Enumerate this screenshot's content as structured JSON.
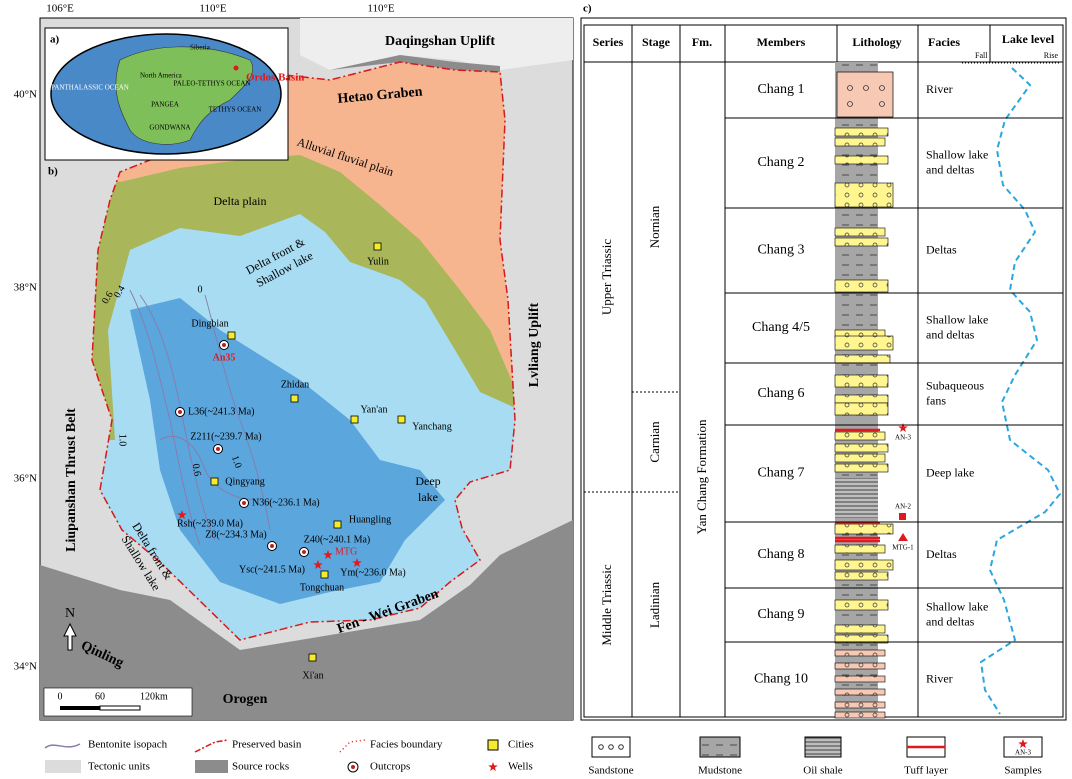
{
  "map": {
    "panel_a": "a)",
    "panel_b": "b)",
    "longitudes": [
      "106°E",
      "110°E",
      "110°E"
    ],
    "latitudes": [
      "40°N",
      "38°N",
      "36°N",
      "34°N"
    ],
    "inset": {
      "labels": [
        "Siberia",
        "North America",
        "PANGEA",
        "GONDWANA",
        "PANTHALASSIC OCEAN",
        "PALEO-TETHYS OCEAN",
        "TETHYS OCEAN"
      ],
      "basin": "Ordos Basin"
    },
    "regions": [
      "Daqingshan Uplift",
      "Hetao Graben",
      "Alluvial fluvial plain",
      "Delta plain",
      [
        "Delta front &",
        "Shallow lake"
      ],
      "Lvliang Uplift",
      "Liupanshan Thrust Belt",
      [
        "Deep",
        "lake"
      ],
      [
        "Delta front &",
        "Shallow lake"
      ],
      "Fen - Wei Graben",
      "Qinling",
      "Orogen"
    ],
    "cities": [
      "Yulin",
      "Dingbian",
      "Zhidan",
      "Yan'an",
      "Yanchang",
      "Qingyang",
      "Huangling",
      "Tongchuan",
      "Xi'an"
    ],
    "outcrops": [
      "An35",
      "L36(~241.3 Ma)",
      "Z211(~239.7 Ma)",
      "N36(~236.1 Ma)",
      "Z8(~234.3 Ma)",
      "Z40(~240.1 Ma)"
    ],
    "wells": [
      "Rsh(~239.0 Ma)",
      "MTG",
      "Ysc(~241.5 Ma)",
      "Ym(~236.0 Ma)"
    ],
    "isopachs": [
      "0.4",
      "0.6",
      "0",
      "1.0",
      "1.0",
      "0.6"
    ],
    "scale": [
      "0",
      "60",
      "120km"
    ],
    "north": "N"
  },
  "legend": [
    "Bentonite isopach",
    "Preserved basin",
    "Facies boundary",
    "Cities",
    "Tectonic units",
    "Source rocks",
    "Outcrops",
    "Wells"
  ],
  "column": {
    "panel": "c)",
    "headers": [
      "Series",
      "Stage",
      "Fm.",
      "Members",
      "Lithology",
      "Facies",
      "Lake level"
    ],
    "lake_level_ends": [
      "Fall",
      "Rise"
    ],
    "series": [
      "Upper Triassic",
      "Middle Triassic"
    ],
    "stages": [
      "Nornian",
      "Carnian",
      "Ladinian"
    ],
    "formation": "Yan Chang Formation",
    "members": [
      "Chang 1",
      "Chang 2",
      "Chang 3",
      "Chang 4/5",
      "Chang 6",
      "Chang 7",
      "Chang 8",
      "Chang 9",
      "Chang 10"
    ],
    "facies": [
      [
        "River"
      ],
      [
        "Shallow lake",
        "and deltas"
      ],
      [
        "Deltas"
      ],
      [
        "Shallow lake",
        "and deltas"
      ],
      [
        "Subaqueous",
        "fans"
      ],
      [
        "Deep lake"
      ],
      [
        "Deltas"
      ],
      [
        "Shallow lake",
        "and deltas"
      ],
      [
        "River"
      ]
    ],
    "samples": [
      "AN-3",
      "AN-2",
      "MTG-1"
    ]
  },
  "lithology_legend": [
    "Sandstone",
    "Mudstone",
    "Oil shale",
    "Tuff layer",
    "Samples"
  ],
  "sample_key": "AN-3"
}
